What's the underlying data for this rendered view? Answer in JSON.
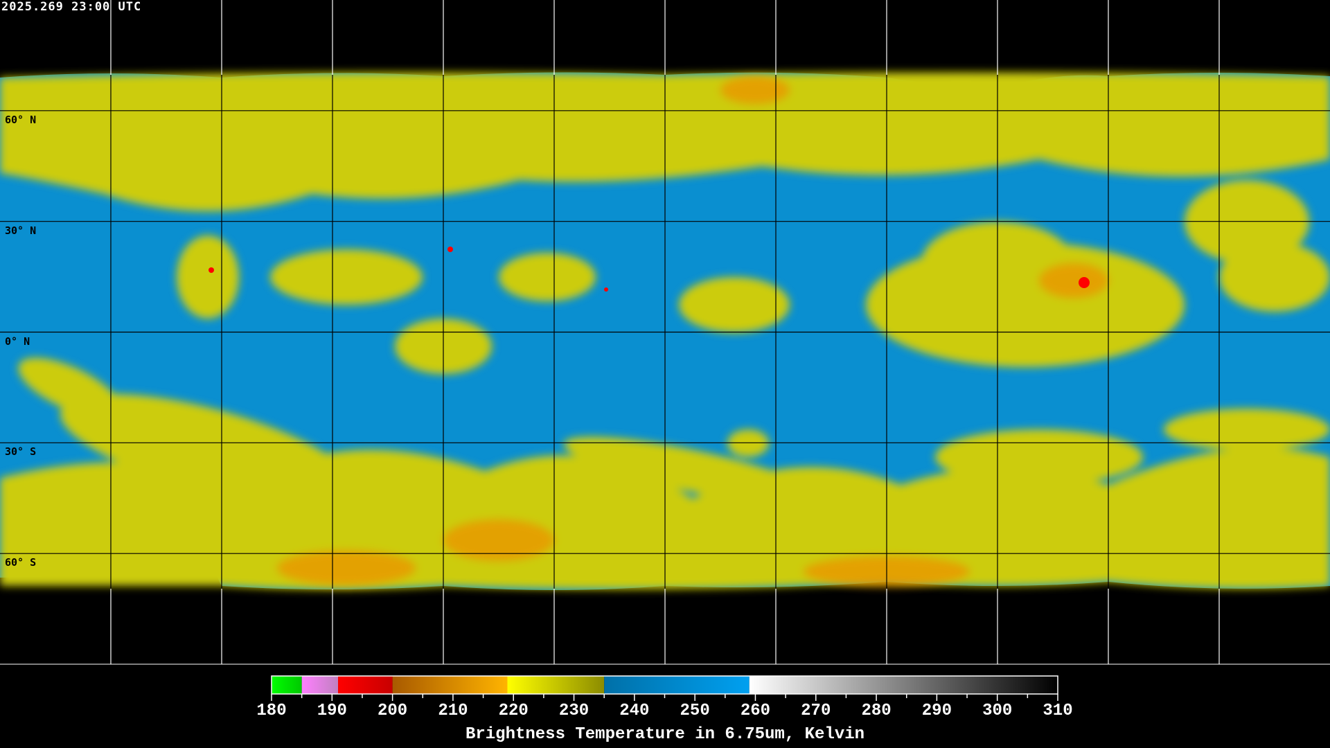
{
  "title": "2025.269 23:00 UTC",
  "map": {
    "projection": "equirectangular",
    "lat_labels": [
      "60° N",
      "30° N",
      "0° N",
      "30° S",
      "60° S"
    ],
    "lat_values": [
      60,
      30,
      0,
      -30,
      -60
    ],
    "grid_spacing_deg": 30,
    "colors": {
      "background": "#000000",
      "moist": "#d4d400",
      "dry": "#0a8fd0",
      "cold": "#e89a00",
      "very_cold": "#ff0000"
    }
  },
  "colorbar": {
    "title": "Brightness Temperature in 6.75um, Kelvin",
    "min": 180,
    "max": 310,
    "tick_labels": [
      "180",
      "190",
      "200",
      "210",
      "220",
      "230",
      "240",
      "250",
      "260",
      "270",
      "280",
      "290",
      "300",
      "310"
    ],
    "segments": [
      {
        "from": 180,
        "to": 185,
        "c1": "#00ff00",
        "c2": "#00c800"
      },
      {
        "from": 185,
        "to": 191,
        "c1": "#ff80ff",
        "c2": "#c080c0"
      },
      {
        "from": 191,
        "to": 200,
        "c1": "#ff0000",
        "c2": "#c80000"
      },
      {
        "from": 200,
        "to": 219,
        "c1": "#a85a00",
        "c2": "#ffb400"
      },
      {
        "from": 219,
        "to": 235,
        "c1": "#ffff00",
        "c2": "#8c8c00"
      },
      {
        "from": 235,
        "to": 259,
        "c1": "#0070a8",
        "c2": "#00a0f0"
      },
      {
        "from": 259,
        "to": 310,
        "c1": "#ffffff",
        "c2": "#000000"
      }
    ]
  }
}
